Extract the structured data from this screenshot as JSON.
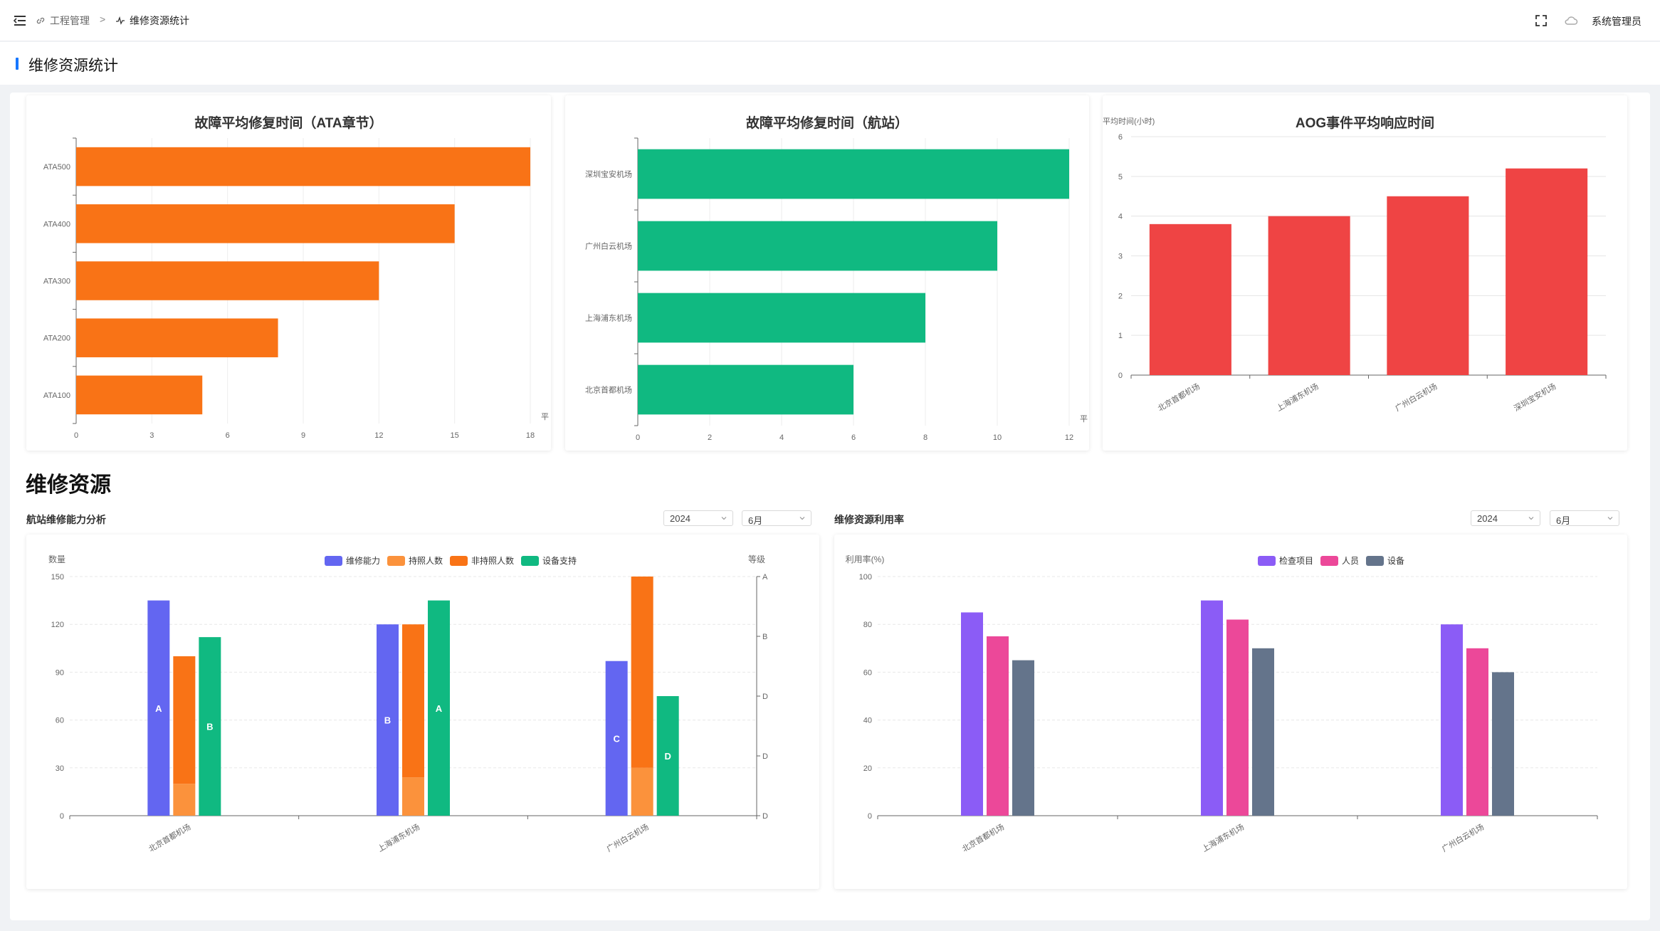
{
  "breadcrumb": {
    "items": [
      "工程管理",
      "维修资源统计"
    ],
    "separator": ">"
  },
  "user": {
    "name": "系统管理员"
  },
  "page": {
    "title": "维修资源统计"
  },
  "section": {
    "title": "维修资源"
  },
  "panels": {
    "left": {
      "title": "航站维修能力分析",
      "year": "2024",
      "month": "6月"
    },
    "right": {
      "title": "维修资源利用率",
      "year": "2024",
      "month": "6月"
    }
  },
  "colors": {
    "orange": "#f97316",
    "green": "#10b981",
    "red": "#ef4444",
    "indigo": "#6366f1",
    "light_orange": "#fb923c",
    "purple": "#8b5cf6",
    "pink": "#ec4899",
    "slate": "#64748b",
    "accent": "#1677ff"
  },
  "chart_data": [
    {
      "id": "ata",
      "type": "bar",
      "orientation": "horizontal",
      "title": "故障平均修复时间（ATA章节）",
      "categories": [
        "ATA100",
        "ATA200",
        "ATA300",
        "ATA400",
        "ATA500"
      ],
      "values": [
        5,
        8,
        12,
        15,
        18
      ],
      "xticks": [
        0,
        3,
        6,
        9,
        12,
        15,
        18
      ],
      "xlim": [
        0,
        18
      ],
      "xlabel": "平",
      "color": "#f97316"
    },
    {
      "id": "station",
      "type": "bar",
      "orientation": "horizontal",
      "title": "故障平均修复时间（航站）",
      "categories": [
        "北京首都机场",
        "上海浦东机场",
        "广州白云机场",
        "深圳宝安机场"
      ],
      "values": [
        6,
        8,
        10,
        12
      ],
      "xticks": [
        0,
        2,
        4,
        6,
        8,
        10,
        12
      ],
      "xlim": [
        0,
        12
      ],
      "xlabel": "平",
      "color": "#10b981"
    },
    {
      "id": "aog",
      "type": "bar",
      "title": "AOG事件平均响应时间",
      "ylabel": "平均时间(小时)",
      "categories": [
        "北京首都机场",
        "上海浦东机场",
        "广州白云机场",
        "深圳宝安机场"
      ],
      "values": [
        3.8,
        4.0,
        4.5,
        5.2
      ],
      "yticks": [
        0,
        1,
        2,
        3,
        4,
        5,
        6
      ],
      "ylim": [
        0,
        6
      ],
      "color": "#ef4444",
      "grid": true
    },
    {
      "id": "capability",
      "type": "bar",
      "ylabel": "数量",
      "ylabel_right": "等级",
      "categories": [
        "北京首都机场",
        "上海浦东机场",
        "广州白云机场"
      ],
      "yticks": [
        0,
        30,
        60,
        90,
        120,
        150
      ],
      "ylim": [
        0,
        150
      ],
      "right_ticks": [
        "D",
        "D",
        "D",
        "B",
        "A"
      ],
      "legend_position": "top",
      "series": [
        {
          "name": "维修能力",
          "values": [
            135,
            120,
            97
          ],
          "labels": [
            "A",
            "B",
            "C"
          ],
          "color": "#6366f1"
        },
        {
          "name": "持照人数",
          "values": [
            20,
            24,
            30
          ],
          "stack": "people",
          "color": "#fb923c"
        },
        {
          "name": "非持照人数",
          "values": [
            80,
            96,
            120
          ],
          "stack": "people",
          "color": "#f97316"
        },
        {
          "name": "设备支持",
          "values": [
            112,
            135,
            75
          ],
          "labels": [
            "B",
            "A",
            "D"
          ],
          "color": "#10b981"
        }
      ],
      "grid": true
    },
    {
      "id": "utilization",
      "type": "bar",
      "ylabel": "利用率(%)",
      "categories": [
        "北京首都机场",
        "上海浦东机场",
        "广州白云机场"
      ],
      "yticks": [
        0,
        20,
        40,
        60,
        80,
        100
      ],
      "ylim": [
        0,
        100
      ],
      "legend_position": "top",
      "series": [
        {
          "name": "检查项目",
          "values": [
            85,
            90,
            80
          ],
          "color": "#8b5cf6"
        },
        {
          "name": "人员",
          "values": [
            75,
            82,
            70
          ],
          "color": "#ec4899"
        },
        {
          "name": "设备",
          "values": [
            65,
            70,
            60
          ],
          "color": "#64748b"
        }
      ],
      "grid": true
    }
  ]
}
